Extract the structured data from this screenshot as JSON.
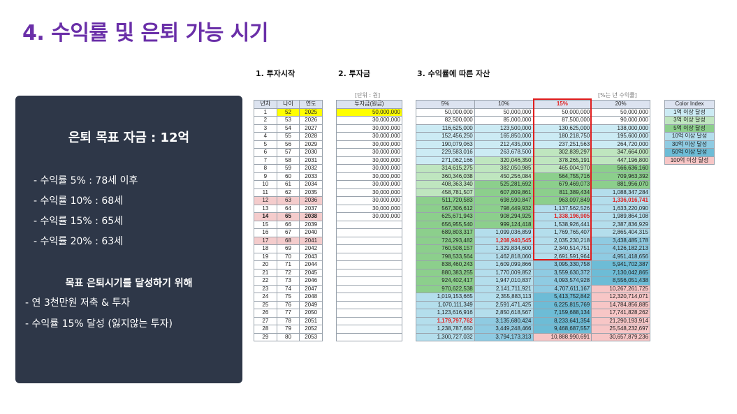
{
  "title": "4. 수익률 및 은퇴 가능 시기",
  "sections": {
    "s1": "1. 투자시작",
    "s2": "2. 투자금",
    "s3": "3. 수익률에 따른 자산"
  },
  "panel": {
    "goal": "은퇴 목표 자금 : 12억",
    "lines": [
      "- 수익률   5% : 78세 이후",
      "- 수익률 10% : 68세",
      "- 수익률 15% : 65세",
      "- 수익률 20% : 63세"
    ],
    "subtitle": "목표 은퇴시기를 달성하기 위해",
    "bullets": [
      "- 연 3천만원 저축 & 투자",
      "- 수익률 15% 달성 (잃지않는 투자)"
    ]
  },
  "notes": {
    "unit": "[단위 : 원]",
    "rate": "[%는 년 수익률]"
  },
  "colors": {
    "c1": "#ccebf4",
    "c3": "#bfe6bf",
    "c5": "#8ccf8c",
    "c10": "#b4deec",
    "c30": "#8fcbe2",
    "c50": "#6dbcd6",
    "c100": "#f7c6c6",
    "yellow": "#ffff00",
    "pink": "#f4cccc",
    "red": "#e01d1d"
  },
  "table1": {
    "headers": [
      "년차",
      "나이",
      "연도"
    ],
    "rows": [
      [
        "1",
        "52",
        "2025"
      ],
      [
        "2",
        "53",
        "2026"
      ],
      [
        "3",
        "54",
        "2027"
      ],
      [
        "4",
        "55",
        "2028"
      ],
      [
        "5",
        "56",
        "2029"
      ],
      [
        "6",
        "57",
        "2030"
      ],
      [
        "7",
        "58",
        "2031"
      ],
      [
        "8",
        "59",
        "2032"
      ],
      [
        "9",
        "60",
        "2033"
      ],
      [
        "10",
        "61",
        "2034"
      ],
      [
        "11",
        "62",
        "2035"
      ],
      [
        "12",
        "63",
        "2036"
      ],
      [
        "13",
        "64",
        "2037"
      ],
      [
        "14",
        "65",
        "2038"
      ],
      [
        "15",
        "66",
        "2039"
      ],
      [
        "16",
        "67",
        "2040"
      ],
      [
        "17",
        "68",
        "2041"
      ],
      [
        "18",
        "69",
        "2042"
      ],
      [
        "19",
        "70",
        "2043"
      ],
      [
        "20",
        "71",
        "2044"
      ],
      [
        "21",
        "72",
        "2045"
      ],
      [
        "22",
        "73",
        "2046"
      ],
      [
        "23",
        "74",
        "2047"
      ],
      [
        "24",
        "75",
        "2048"
      ],
      [
        "25",
        "76",
        "2049"
      ],
      [
        "26",
        "77",
        "2050"
      ],
      [
        "27",
        "78",
        "2051"
      ],
      [
        "28",
        "79",
        "2052"
      ],
      [
        "29",
        "80",
        "2053"
      ]
    ]
  },
  "table2": {
    "header": "투자금(원금)",
    "rows": [
      "50,000,000",
      "30,000,000",
      "30,000,000",
      "30,000,000",
      "30,000,000",
      "30,000,000",
      "30,000,000",
      "30,000,000",
      "30,000,000",
      "30,000,000",
      "30,000,000",
      "30,000,000",
      "30,000,000",
      "30,000,000",
      "",
      "",
      "",
      "",
      "",
      "",
      "",
      "",
      "",
      "",
      "",
      "",
      "",
      "",
      ""
    ]
  },
  "table3": {
    "headers": [
      "5%",
      "10%",
      "15%",
      "20%"
    ],
    "rows": [
      [
        "50,000,000",
        "50,000,000",
        "50,000,000",
        "50,000,000"
      ],
      [
        "82,500,000",
        "85,000,000",
        "87,500,000",
        "90,000,000"
      ],
      [
        "116,625,000",
        "123,500,000",
        "130,625,000",
        "138,000,000"
      ],
      [
        "152,456,250",
        "165,850,000",
        "180,218,750",
        "195,600,000"
      ],
      [
        "190,079,063",
        "212,435,000",
        "237,251,563",
        "264,720,000"
      ],
      [
        "229,583,016",
        "263,678,500",
        "302,839,297",
        "347,664,000"
      ],
      [
        "271,062,166",
        "320,046,350",
        "378,265,191",
        "447,196,800"
      ],
      [
        "314,615,275",
        "382,050,985",
        "465,004,970",
        "566,636,160"
      ],
      [
        "360,346,038",
        "450,256,084",
        "564,755,716",
        "709,963,392"
      ],
      [
        "408,363,340",
        "525,281,692",
        "679,469,073",
        "881,956,070"
      ],
      [
        "458,781,507",
        "607,809,861",
        "811,389,434",
        "1,088,347,284"
      ],
      [
        "511,720,583",
        "698,590,847",
        "963,097,849",
        "1,336,016,741"
      ],
      [
        "567,306,612",
        "798,449,932",
        "1,137,562,526",
        "1,633,220,090"
      ],
      [
        "625,671,943",
        "908,294,925",
        "1,338,196,905",
        "1,989,864,108"
      ],
      [
        "656,955,540",
        "999,124,418",
        "1,538,926,441",
        "2,387,836,929"
      ],
      [
        "689,803,317",
        "1,099,036,859",
        "1,769,765,407",
        "2,865,404,315"
      ],
      [
        "724,293,482",
        "1,208,940,545",
        "2,035,230,218",
        "3,438,485,178"
      ],
      [
        "760,508,157",
        "1,329,834,600",
        "2,340,514,751",
        "4,126,182,213"
      ],
      [
        "798,533,564",
        "1,462,818,060",
        "2,691,591,964",
        "4,951,418,656"
      ],
      [
        "838,460,243",
        "1,609,099,866",
        "3,095,330,758",
        "5,941,702,387"
      ],
      [
        "880,383,255",
        "1,770,009,852",
        "3,559,630,372",
        "7,130,042,865"
      ],
      [
        "924,402,417",
        "1,947,010,837",
        "4,093,574,928",
        "8,556,051,438"
      ],
      [
        "970,622,538",
        "2,141,711,921",
        "4,707,611,167",
        "10,267,261,725"
      ],
      [
        "1,019,153,665",
        "2,355,883,113",
        "5,413,752,842",
        "12,320,714,071"
      ],
      [
        "1,070,111,349",
        "2,591,471,425",
        "6,225,815,769",
        "14,784,856,885"
      ],
      [
        "1,123,616,916",
        "2,850,618,567",
        "7,159,688,134",
        "17,741,828,262"
      ],
      [
        "1,179,797,762",
        "3,135,680,424",
        "8,233,641,354",
        "21,290,193,914"
      ],
      [
        "1,238,787,650",
        "3,449,248,466",
        "9,468,687,557",
        "25,548,232,697"
      ],
      [
        "1,300,727,032",
        "3,794,173,313",
        "10,888,990,691",
        "30,657,879,236"
      ]
    ]
  },
  "legend": {
    "header": "Color Index",
    "items": [
      "1억 이상 달성",
      "3억 이상 달성",
      "5억 이상 달성",
      "10억 이상 달성",
      "30억 이상 달성",
      "50억 이상 달성",
      "100억 이상 달성"
    ]
  }
}
